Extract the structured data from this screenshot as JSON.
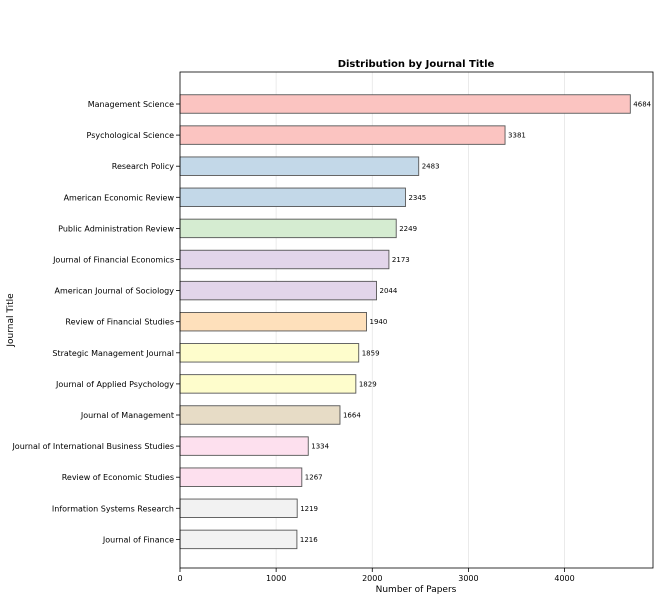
{
  "chart_data": {
    "type": "bar",
    "orientation": "horizontal",
    "title": "Distribution by Journal Title",
    "xlabel": "Number of Papers",
    "ylabel": "Journal Title",
    "xlim": [
      0,
      4920
    ],
    "xticks": [
      0,
      1000,
      2000,
      3000,
      4000
    ],
    "grid": "vertical",
    "categories": [
      "Management Science",
      "Psychological Science",
      "Research Policy",
      "American Economic Review",
      "Public Administration Review",
      "Journal of Financial Economics",
      "American Journal of Sociology",
      "Review of Financial Studies",
      "Strategic Management Journal",
      "Journal of Applied Psychology",
      "Journal of Management",
      "Journal of International Business Studies",
      "Review of Economic Studies",
      "Information Systems Research",
      "Journal of Finance"
    ],
    "values": [
      4684,
      3381,
      2483,
      2345,
      2249,
      2173,
      2044,
      1940,
      1859,
      1829,
      1664,
      1334,
      1267,
      1219,
      1216
    ],
    "colors": [
      "#fbc4c1",
      "#fbc4c1",
      "#c3d8e8",
      "#c3d8e8",
      "#d5ecd1",
      "#e2d5ea",
      "#e2d5ea",
      "#fee0bb",
      "#fefdcc",
      "#fefdcc",
      "#e7dcc6",
      "#fde0ee",
      "#fde0ee",
      "#f2f2f2",
      "#f2f2f2"
    ]
  }
}
